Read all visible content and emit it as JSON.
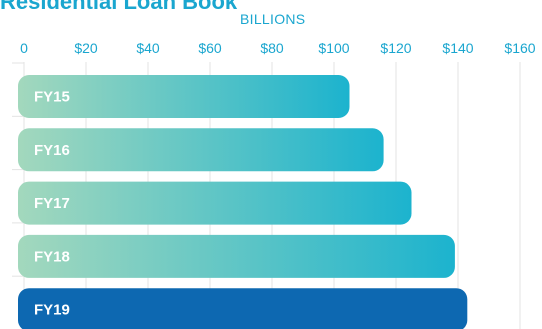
{
  "chart_data": {
    "type": "bar",
    "orientation": "horizontal",
    "title": "Residential Loan Book",
    "xlabel": "BILLIONS",
    "categories": [
      "FY15",
      "FY16",
      "FY17",
      "FY18",
      "FY19"
    ],
    "values": [
      105,
      116,
      125,
      139,
      143
    ],
    "xlim": [
      0,
      160
    ],
    "x_ticks": [
      0,
      20,
      40,
      60,
      80,
      100,
      120,
      140,
      160
    ],
    "x_tick_labels": [
      "0",
      "$20",
      "$40",
      "$60",
      "$80",
      "$100",
      "$120",
      "$140",
      "$160"
    ],
    "grid": true,
    "colors": {
      "gradient_start": "#a3d8bd",
      "gradient_end": "#1cb3ce",
      "highlight": "#0d68b1",
      "grid": "#e3e3e3",
      "axis_text": "#1aa6cf"
    },
    "highlight_category": "FY19"
  }
}
